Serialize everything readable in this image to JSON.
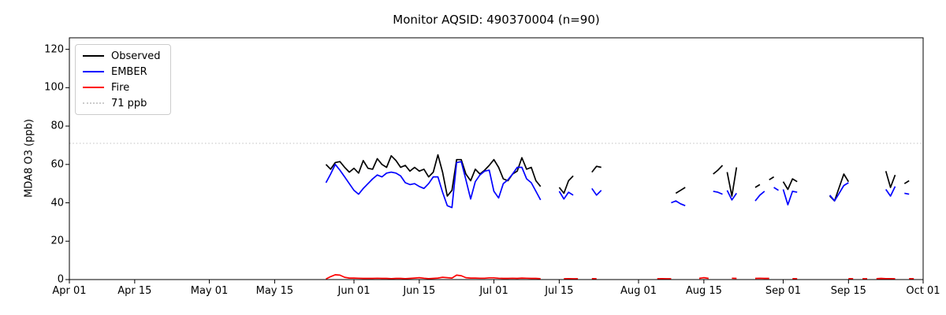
{
  "figure": {
    "title": "Monitor AQSID: 490370004 (n=90)",
    "monitor_aqsid": "490370004",
    "n": 90
  },
  "chart_data": {
    "type": "line",
    "title": "Monitor AQSID: 490370004 (n=90)",
    "xlabel": "",
    "ylabel": "MDA8 O3 (ppb)",
    "ylim": [
      0,
      126
    ],
    "x_domain_days": 183,
    "x_axis_note": "days measured from Apr 01; axis spans Apr 01 to Oct 01",
    "grid": "off",
    "legend_position": "upper-left",
    "y_ticks": [
      0,
      20,
      40,
      60,
      80,
      100,
      120
    ],
    "x_ticks": [
      {
        "day": 0,
        "label": "Apr 01"
      },
      {
        "day": 14,
        "label": "Apr 15"
      },
      {
        "day": 30,
        "label": "May 01"
      },
      {
        "day": 44,
        "label": "May 15"
      },
      {
        "day": 61,
        "label": "Jun 01"
      },
      {
        "day": 75,
        "label": "Jun 15"
      },
      {
        "day": 91,
        "label": "Jul 01"
      },
      {
        "day": 105,
        "label": "Jul 15"
      },
      {
        "day": 122,
        "label": "Aug 01"
      },
      {
        "day": 136,
        "label": "Aug 15"
      },
      {
        "day": 153,
        "label": "Sep 01"
      },
      {
        "day": 167,
        "label": "Sep 15"
      },
      {
        "day": 183,
        "label": "Oct 01"
      }
    ],
    "threshold": {
      "label": "71 ppb",
      "value": 71,
      "color": "#cccccc",
      "style": "dotted"
    },
    "legend": [
      {
        "label": "Observed",
        "color": "#000000",
        "style": "solid"
      },
      {
        "label": "EMBER",
        "color": "#0000ff",
        "style": "solid"
      },
      {
        "label": "Fire",
        "color": "#ff0000",
        "style": "solid"
      },
      {
        "label": "71 ppb",
        "color": "#cccccc",
        "style": "dotted"
      }
    ],
    "series": [
      {
        "name": "Observed",
        "color": "#000000",
        "points": [
          [
            55,
            60
          ],
          [
            56,
            57.5
          ],
          [
            57,
            61
          ],
          [
            58,
            61.5
          ],
          [
            59,
            58.5
          ],
          [
            60,
            56
          ],
          [
            61,
            58
          ],
          [
            62,
            55.5
          ],
          [
            63,
            62
          ],
          [
            64,
            58
          ],
          [
            65,
            57.5
          ],
          [
            66,
            63
          ],
          [
            67,
            60
          ],
          [
            68,
            58.5
          ],
          [
            69,
            64.5
          ],
          [
            70,
            62
          ],
          [
            71,
            58.5
          ],
          [
            72,
            59.5
          ],
          [
            73,
            56.5
          ],
          [
            74,
            58.5
          ],
          [
            75,
            56.5
          ],
          [
            76,
            57.5
          ],
          [
            77,
            53.5
          ],
          [
            78,
            56
          ],
          [
            79,
            65
          ],
          [
            80,
            56
          ],
          [
            81,
            43.5
          ],
          [
            82,
            46.5
          ],
          [
            83,
            62.5
          ],
          [
            84,
            62.5
          ],
          [
            85,
            55
          ],
          [
            86,
            51.5
          ],
          [
            87,
            57.5
          ],
          [
            88,
            55
          ],
          [
            89,
            57
          ],
          [
            90,
            59.5
          ],
          [
            91,
            62.5
          ],
          [
            92,
            58.5
          ],
          [
            93,
            52.5
          ],
          [
            94,
            51.5
          ],
          [
            95,
            55
          ],
          [
            96,
            56.5
          ],
          [
            97,
            63.5
          ],
          [
            98,
            57.5
          ],
          [
            99,
            58.5
          ],
          [
            100,
            51.5
          ],
          [
            101,
            48.5
          ],
          null,
          [
            105,
            48
          ],
          [
            106,
            45
          ],
          [
            107,
            51.5
          ],
          [
            108,
            54
          ],
          null,
          [
            112,
            56
          ],
          [
            113,
            59
          ],
          [
            114,
            58.5
          ],
          null,
          [
            130,
            45
          ],
          [
            131,
            46.5
          ],
          [
            132,
            48
          ],
          null,
          [
            138,
            55
          ],
          [
            139,
            57
          ],
          [
            140,
            59.5
          ],
          null,
          [
            141,
            56
          ],
          [
            142,
            43.5
          ],
          [
            143,
            58.5
          ],
          null,
          [
            147,
            48
          ],
          [
            148,
            49.5
          ],
          null,
          [
            150,
            52
          ],
          [
            151,
            53.5
          ],
          null,
          [
            153,
            51
          ],
          [
            154,
            47
          ],
          [
            155,
            52.5
          ],
          [
            156,
            51
          ],
          null,
          [
            163,
            43.5
          ],
          [
            164,
            41
          ],
          [
            165,
            48
          ],
          [
            166,
            55
          ],
          [
            167,
            51
          ],
          null,
          [
            175,
            56.5
          ],
          [
            176,
            48
          ],
          [
            177,
            54.5
          ],
          null,
          [
            179,
            50
          ],
          [
            180,
            51.5
          ]
        ]
      },
      {
        "name": "EMBER",
        "color": "#0000ff",
        "points": [
          [
            55,
            50.5
          ],
          [
            56,
            55
          ],
          [
            57,
            60
          ],
          [
            58,
            57
          ],
          [
            59,
            53.5
          ],
          [
            60,
            50
          ],
          [
            61,
            46.5
          ],
          [
            62,
            44.5
          ],
          [
            63,
            47.5
          ],
          [
            64,
            50
          ],
          [
            65,
            52.5
          ],
          [
            66,
            54.5
          ],
          [
            67,
            53.5
          ],
          [
            68,
            55.5
          ],
          [
            69,
            56
          ],
          [
            70,
            55.5
          ],
          [
            71,
            54
          ],
          [
            72,
            50.5
          ],
          [
            73,
            49.5
          ],
          [
            74,
            50
          ],
          [
            75,
            48.5
          ],
          [
            76,
            47.5
          ],
          [
            77,
            50
          ],
          [
            78,
            53.5
          ],
          [
            79,
            53.5
          ],
          [
            80,
            45.5
          ],
          [
            81,
            38.5
          ],
          [
            82,
            37.5
          ],
          [
            83,
            61
          ],
          [
            84,
            61.5
          ],
          [
            85,
            52
          ],
          [
            86,
            42
          ],
          [
            87,
            51
          ],
          [
            88,
            54.5
          ],
          [
            89,
            56.5
          ],
          [
            90,
            57
          ],
          [
            91,
            46
          ],
          [
            92,
            42.5
          ],
          [
            93,
            50
          ],
          [
            94,
            52
          ],
          [
            95,
            55
          ],
          [
            96,
            58.5
          ],
          [
            97,
            58.5
          ],
          [
            98,
            52.5
          ],
          [
            99,
            50.5
          ],
          [
            100,
            46
          ],
          [
            101,
            41.5
          ],
          null,
          [
            105,
            46
          ],
          [
            106,
            42
          ],
          [
            107,
            45.5
          ],
          [
            108,
            44
          ],
          null,
          [
            112,
            47.5
          ],
          [
            113,
            44
          ],
          [
            114,
            46.5
          ],
          null,
          [
            129,
            40
          ],
          [
            130,
            41
          ],
          [
            131,
            39.5
          ],
          [
            132,
            38.5
          ],
          null,
          [
            138,
            46
          ],
          [
            139,
            45.5
          ],
          [
            140,
            44.5
          ],
          null,
          [
            141,
            46.5
          ],
          [
            142,
            41.5
          ],
          [
            143,
            45
          ],
          null,
          [
            147,
            41
          ],
          [
            148,
            44
          ],
          [
            149,
            46
          ],
          null,
          [
            151,
            48
          ],
          [
            152,
            46.5
          ],
          null,
          [
            153,
            47
          ],
          [
            154,
            39
          ],
          [
            155,
            46
          ],
          [
            156,
            45.5
          ],
          null,
          [
            163,
            44
          ],
          [
            164,
            41
          ],
          [
            165,
            45
          ],
          [
            166,
            49
          ],
          [
            167,
            50.5
          ],
          null,
          [
            175,
            47
          ],
          [
            176,
            43.5
          ],
          [
            177,
            48.5
          ],
          null,
          [
            179,
            45
          ],
          [
            180,
            44.5
          ]
        ]
      },
      {
        "name": "Fire",
        "color": "#ff0000",
        "points": [
          [
            55,
            0.3
          ],
          [
            56,
            1.5
          ],
          [
            57,
            2.5
          ],
          [
            58,
            2.3
          ],
          [
            59,
            1.2
          ],
          [
            60,
            0.8
          ],
          [
            61,
            0.8
          ],
          [
            62,
            0.7
          ],
          [
            63,
            0.6
          ],
          [
            64,
            0.6
          ],
          [
            65,
            0.6
          ],
          [
            66,
            0.7
          ],
          [
            67,
            0.6
          ],
          [
            68,
            0.6
          ],
          [
            69,
            0.5
          ],
          [
            70,
            0.6
          ],
          [
            71,
            0.6
          ],
          [
            72,
            0.5
          ],
          [
            73,
            0.6
          ],
          [
            74,
            0.8
          ],
          [
            75,
            1.0
          ],
          [
            76,
            0.7
          ],
          [
            77,
            0.5
          ],
          [
            78,
            0.6
          ],
          [
            79,
            0.8
          ],
          [
            80,
            1.2
          ],
          [
            81,
            1.0
          ],
          [
            82,
            0.8
          ],
          [
            83,
            2.3
          ],
          [
            84,
            2.0
          ],
          [
            85,
            1.0
          ],
          [
            86,
            0.8
          ],
          [
            87,
            0.8
          ],
          [
            88,
            0.7
          ],
          [
            89,
            0.7
          ],
          [
            90,
            0.9
          ],
          [
            91,
            0.9
          ],
          [
            92,
            0.7
          ],
          [
            93,
            0.6
          ],
          [
            94,
            0.6
          ],
          [
            95,
            0.7
          ],
          [
            96,
            0.6
          ],
          [
            97,
            0.8
          ],
          [
            98,
            0.7
          ],
          [
            99,
            0.6
          ],
          [
            100,
            0.6
          ],
          [
            101,
            0.5
          ],
          null,
          [
            106,
            0.4
          ],
          [
            107,
            0.5
          ],
          [
            108,
            0.4
          ],
          [
            109,
            0.4
          ],
          null,
          [
            112,
            0.5
          ],
          [
            113,
            0.4
          ],
          null,
          [
            126,
            0.4
          ],
          [
            127,
            0.5
          ],
          [
            128,
            0.4
          ],
          [
            129,
            0.4
          ],
          null,
          [
            135,
            0.6
          ],
          [
            136,
            1.0
          ],
          [
            137,
            0.6
          ],
          null,
          [
            142,
            0.7
          ],
          [
            143,
            0.6
          ],
          null,
          [
            147,
            0.6
          ],
          [
            148,
            0.7
          ],
          [
            149,
            0.6
          ],
          [
            150,
            0.6
          ],
          null,
          [
            155,
            0.5
          ],
          [
            156,
            0.4
          ],
          null,
          [
            167,
            0.5
          ],
          [
            168,
            0.4
          ],
          null,
          [
            170,
            0.4
          ],
          [
            171,
            0.4
          ],
          null,
          [
            173,
            0.5
          ],
          [
            174,
            0.6
          ],
          [
            175,
            0.5
          ],
          [
            176,
            0.5
          ],
          [
            177,
            0.4
          ],
          null,
          [
            180,
            0.5
          ],
          [
            181,
            0.4
          ]
        ]
      }
    ]
  }
}
